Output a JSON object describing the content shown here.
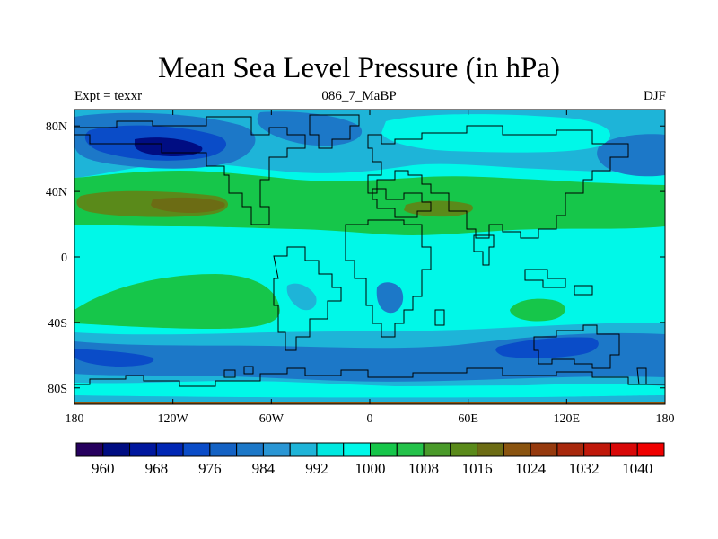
{
  "title": "Mean Sea Level Pressure (in hPa)",
  "subtitle_left": "Expt = texxr",
  "subtitle_center": "086_7_MaBP",
  "subtitle_right": "DJF",
  "colors": {
    "background": "#ffffff",
    "land_outline": "#000000"
  },
  "chart_data": {
    "type": "contour_map",
    "variable": "Mean Sea Level Pressure",
    "units": "hPa",
    "x_range": [
      -180,
      180
    ],
    "y_range": [
      -90,
      90
    ],
    "x_ticks": [
      {
        "value": -180,
        "label": "180"
      },
      {
        "value": -120,
        "label": "120W"
      },
      {
        "value": -60,
        "label": "60W"
      },
      {
        "value": 0,
        "label": "0"
      },
      {
        "value": 60,
        "label": "60E"
      },
      {
        "value": 120,
        "label": "120E"
      },
      {
        "value": 180,
        "label": "180"
      }
    ],
    "y_ticks": [
      {
        "value": 80,
        "label": "80N"
      },
      {
        "value": 40,
        "label": "40N"
      },
      {
        "value": 0,
        "label": "0"
      },
      {
        "value": -40,
        "label": "40S"
      },
      {
        "value": -80,
        "label": "80S"
      }
    ],
    "colorbar": {
      "levels": [
        960,
        964,
        968,
        972,
        976,
        980,
        984,
        988,
        992,
        996,
        1000,
        1004,
        1008,
        1012,
        1016,
        1020,
        1024,
        1028,
        1032,
        1036,
        1040
      ],
      "labels": [
        "960",
        "968",
        "976",
        "984",
        "992",
        "1000",
        "1008",
        "1016",
        "1024",
        "1032",
        "1040"
      ],
      "colors": [
        "#26005e",
        "#000d82",
        "#00179e",
        "#0026b4",
        "#0a4cc8",
        "#1462c4",
        "#1c78c8",
        "#2a96d4",
        "#1eb4d8",
        "#00e8e0",
        "#00f8e8",
        "#16c64a",
        "#24c24a",
        "#4a9a2a",
        "#5a8a1a",
        "#6c6c14",
        "#8a5410",
        "#963a0e",
        "#a8280c",
        "#c0180a",
        "#d80808",
        "#f00000"
      ]
    },
    "regions": [
      {
        "description": "background",
        "level": "1000-1004"
      },
      {
        "description": "subtropical high belt north (~30N-45N)",
        "level": "1012-1016"
      },
      {
        "description": "high cores north (~30N)",
        "level": "1016-1020"
      },
      {
        "description": "high south Pacific (~35S)",
        "level": "1012-1016"
      },
      {
        "description": "high south Indian (~35S)",
        "level": "1012-1016"
      },
      {
        "description": "southern ocean low belt (~50S-70S)",
        "level": "984-996"
      },
      {
        "description": "north Pacific low (~70N)",
        "level": "972-988"
      },
      {
        "description": "north Atlantic low (~60N)",
        "level": "984-996"
      },
      {
        "description": "north Pacific east low (~65N, 150E)",
        "level": "988-996"
      }
    ]
  }
}
